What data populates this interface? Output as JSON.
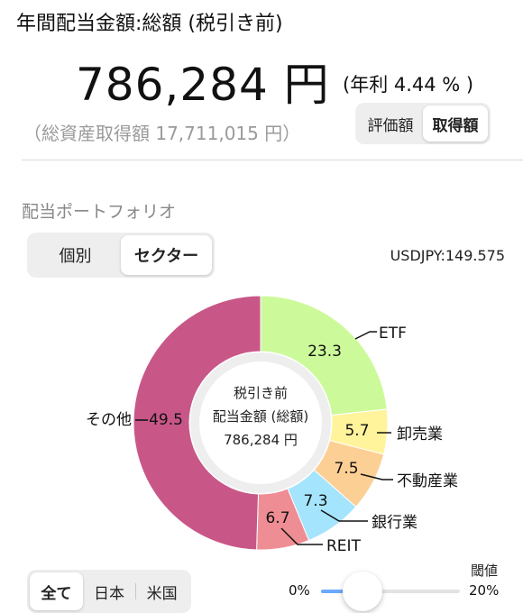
{
  "header": {
    "title": "年間配当金額:総額 (税引き前)",
    "amount": "786,284 円",
    "yield": "(年利 4.44 % )",
    "cost_basis": "（総資産取得額 17,711,015 円）"
  },
  "valuation_toggle": {
    "options": [
      "評価額",
      "取得額"
    ],
    "selected": "取得額"
  },
  "portfolio": {
    "section_title": "配当ポートフォリオ",
    "view_toggle": {
      "options": [
        "個別",
        "セクター"
      ],
      "selected": "セクター"
    },
    "fx_rate": "USDJPY:149.575"
  },
  "chart_data": {
    "type": "pie",
    "center_label": [
      "税引き前",
      "配当金額 (総額)",
      "786,284 円"
    ],
    "slices": [
      {
        "label": "ETF",
        "value": 23.3,
        "value_text": "23.3",
        "color": "#ccfa9a"
      },
      {
        "label": "卸売業",
        "value": 5.7,
        "value_text": "5.7",
        "color": "#fff49c"
      },
      {
        "label": "不動産業",
        "value": 7.5,
        "value_text": "7.5",
        "color": "#fccf95"
      },
      {
        "label": "銀行業",
        "value": 7.3,
        "value_text": "7.3",
        "color": "#a4e4fc"
      },
      {
        "label": "REIT",
        "value": 6.7,
        "value_text": "6.7",
        "color": "#ef8d94"
      },
      {
        "label": "その他",
        "value": 49.5,
        "value_text": "49.5",
        "color": "#c85788"
      }
    ]
  },
  "region_toggle": {
    "options": [
      "全て",
      "日本",
      "米国"
    ],
    "selected": "全て"
  },
  "threshold": {
    "label": "閾値",
    "min_label": "0%",
    "max_label": "20%",
    "value_fraction": 0.3
  }
}
